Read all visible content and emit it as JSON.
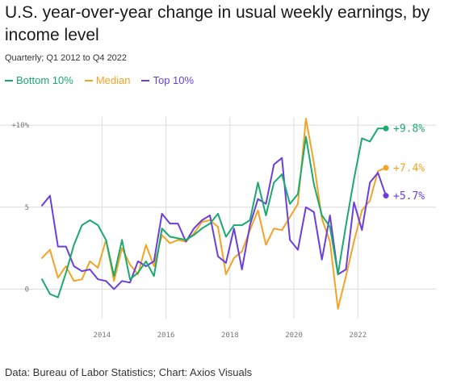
{
  "chart_data": {
    "type": "line",
    "title": "U.S. year-over-year change in usual weekly earnings, by income level",
    "subtitle": "Quarterly; Q1 2012 to Q4 2022",
    "source": "Data: Bureau of Labor Statistics; Chart: Axios Visuals",
    "ylim": [
      -1.8,
      10.5
    ],
    "yticks": [
      {
        "value": 10,
        "label": "+10%"
      },
      {
        "value": 5,
        "label": "5"
      },
      {
        "value": 0,
        "label": "0"
      }
    ],
    "xlim": [
      2012.125,
      2022.875
    ],
    "xticks": [
      {
        "value": 2014.0,
        "label": "2014"
      },
      {
        "value": 2016.0,
        "label": "2016"
      },
      {
        "value": 2018.0,
        "label": "2018"
      },
      {
        "value": 2020.0,
        "label": "2020"
      },
      {
        "value": 2022.0,
        "label": "2022"
      }
    ],
    "grid": true,
    "legend_position": "top-left",
    "x": [
      2012.125,
      2012.375,
      2012.625,
      2012.875,
      2013.125,
      2013.375,
      2013.625,
      2013.875,
      2014.125,
      2014.375,
      2014.625,
      2014.875,
      2015.125,
      2015.375,
      2015.625,
      2015.875,
      2016.125,
      2016.375,
      2016.625,
      2016.875,
      2017.125,
      2017.375,
      2017.625,
      2017.875,
      2018.125,
      2018.375,
      2018.625,
      2018.875,
      2019.125,
      2019.375,
      2019.625,
      2019.875,
      2020.125,
      2020.375,
      2020.625,
      2020.875,
      2021.125,
      2021.375,
      2021.625,
      2021.875,
      2022.125,
      2022.375,
      2022.625,
      2022.875
    ],
    "series": [
      {
        "name": "Bottom 10%",
        "color": "#1aaa6e",
        "end_label": "+9.8%",
        "values": [
          0.6,
          -0.3,
          -0.5,
          1.0,
          2.7,
          3.9,
          4.2,
          3.9,
          3.0,
          0.8,
          3.0,
          0.6,
          1.0,
          1.7,
          0.8,
          3.7,
          3.2,
          3.1,
          3.0,
          3.3,
          3.7,
          4.0,
          4.6,
          3.2,
          3.9,
          3.9,
          4.2,
          6.5,
          4.5,
          6.5,
          7.0,
          5.2,
          5.8,
          9.3,
          6.4,
          4.5,
          3.8,
          0.9,
          3.9,
          6.7,
          9.2,
          9.0,
          9.8,
          9.8
        ]
      },
      {
        "name": "Median",
        "color": "#f5a324",
        "end_label": "+7.4%",
        "values": [
          1.9,
          2.4,
          0.7,
          1.4,
          0.5,
          0.6,
          1.7,
          1.3,
          3.0,
          0.5,
          2.5,
          1.5,
          0.9,
          2.7,
          1.4,
          3.3,
          2.8,
          3.0,
          2.9,
          3.4,
          4.1,
          4.2,
          3.8,
          0.9,
          1.9,
          2.3,
          3.6,
          4.8,
          2.7,
          3.7,
          3.6,
          4.4,
          5.2,
          10.4,
          7.7,
          4.3,
          2.9,
          -1.2,
          0.8,
          2.9,
          4.8,
          5.4,
          7.2,
          7.4
        ]
      },
      {
        "name": "Top 10%",
        "color": "#6a3fe0",
        "end_label": "+5.7%",
        "values": [
          5.1,
          5.7,
          2.6,
          2.6,
          1.4,
          1.1,
          1.2,
          0.6,
          0.5,
          0.0,
          0.5,
          0.4,
          1.7,
          1.4,
          1.7,
          4.6,
          4.0,
          4.0,
          2.9,
          3.7,
          4.2,
          4.5,
          2.0,
          1.6,
          3.7,
          1.2,
          3.9,
          5.5,
          5.2,
          7.6,
          8.0,
          3.0,
          2.4,
          5.0,
          4.7,
          1.8,
          4.5,
          0.9,
          1.2,
          5.3,
          3.6,
          6.5,
          7.1,
          5.7
        ]
      }
    ]
  }
}
